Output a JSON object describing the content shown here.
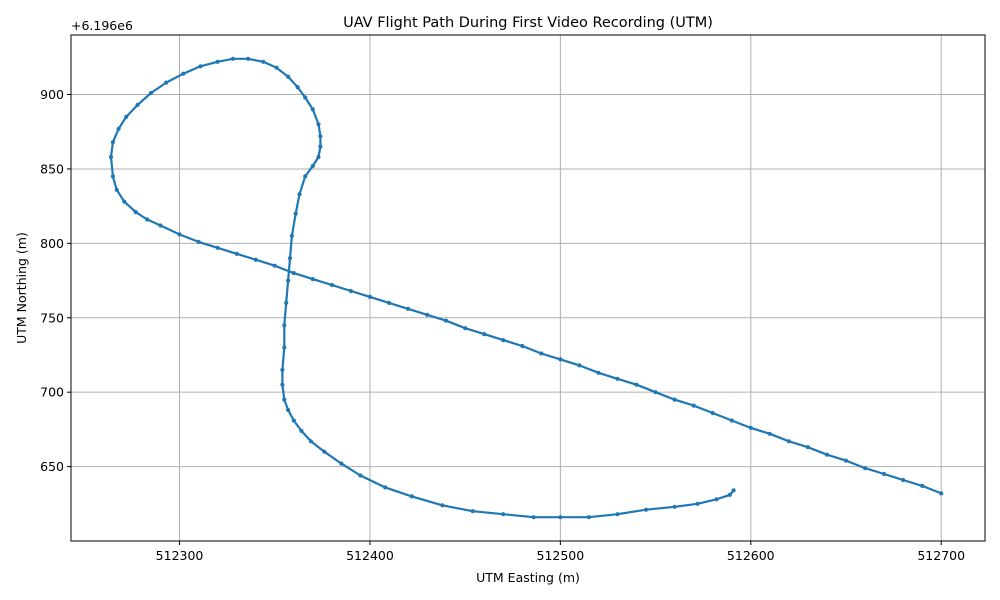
{
  "chart_data": {
    "type": "scatter",
    "title": "UAV Flight Path During First Video Recording (UTM)",
    "xlabel": "UTM Easting (m)",
    "ylabel": "UTM Northing (m)",
    "y_offset_label": "+6.196e6",
    "y_offset": 6196000,
    "xlim": [
      512243,
      512723
    ],
    "ylim": [
      6196600,
      6196940
    ],
    "xticks": [
      512300,
      512400,
      512500,
      512600,
      512700
    ],
    "yticks": [
      650,
      700,
      750,
      800,
      850,
      900
    ],
    "xtick_labels": [
      "512300",
      "512400",
      "512500",
      "512600",
      "512700"
    ],
    "ytick_labels": [
      "650",
      "700",
      "750",
      "800",
      "850",
      "900"
    ],
    "grid": true,
    "color": "#1f77b4",
    "series": [
      {
        "x": [
          512700,
          512690,
          512680,
          512670,
          512660,
          512650,
          512640,
          512630,
          512620,
          512610,
          512600,
          512590,
          512580,
          512570,
          512560,
          512550,
          512540,
          512530,
          512520,
          512510,
          512500,
          512490,
          512480,
          512470,
          512460,
          512450,
          512440,
          512430,
          512420,
          512410,
          512400,
          512390,
          512380,
          512370,
          512360,
          512350,
          512340,
          512330,
          512320,
          512310,
          512300,
          512290,
          512283,
          512277,
          512271,
          512267,
          512265,
          512264,
          512265,
          512268,
          512272,
          512278,
          512285,
          512293,
          512302,
          512311,
          512320,
          512328,
          512336,
          512344,
          512351,
          512357,
          512362,
          512366,
          512370,
          512373,
          512374,
          512374,
          512373,
          512370,
          512366,
          512363,
          512361,
          512359,
          512358,
          512357,
          512356,
          512355,
          512355,
          512354,
          512354,
          512355,
          512357,
          512360,
          512364,
          512369,
          512376,
          512385,
          512395,
          512408,
          512422,
          512438,
          512454,
          512470,
          512486,
          512500,
          512515,
          512530,
          512545,
          512560,
          512572,
          512582,
          512589,
          512591
        ],
        "y": [
          6196632,
          6196637,
          6196641,
          6196645,
          6196649,
          6196654,
          6196658,
          6196663,
          6196667,
          6196672,
          6196676,
          6196681,
          6196686,
          6196691,
          6196695,
          6196700,
          6196705,
          6196709,
          6196713,
          6196718,
          6196722,
          6196726,
          6196731,
          6196735,
          6196739,
          6196743,
          6196748,
          6196752,
          6196756,
          6196760,
          6196764,
          6196768,
          6196772,
          6196776,
          6196780,
          6196785,
          6196789,
          6196793,
          6196797,
          6196801,
          6196806,
          6196812,
          6196816,
          6196821,
          6196828,
          6196836,
          6196845,
          6196858,
          6196868,
          6196877,
          6196885,
          6196893,
          6196901,
          6196908,
          6196914,
          6196919,
          6196922,
          6196924,
          6196924,
          6196922,
          6196918,
          6196912,
          6196905,
          6196898,
          6196890,
          6196880,
          6196872,
          6196865,
          6196858,
          6196852,
          6196845,
          6196833,
          6196820,
          6196805,
          6196790,
          6196775,
          6196760,
          6196745,
          6196730,
          6196715,
          6196705,
          6196695,
          6196688,
          6196681,
          6196674,
          6196667,
          6196660,
          6196652,
          6196644,
          6196636,
          6196630,
          6196624,
          6196620,
          6196618,
          6196616,
          6196616,
          6196616,
          6196618,
          6196621,
          6196623,
          6196625,
          6196628,
          6196631,
          6196634
        ]
      }
    ]
  }
}
